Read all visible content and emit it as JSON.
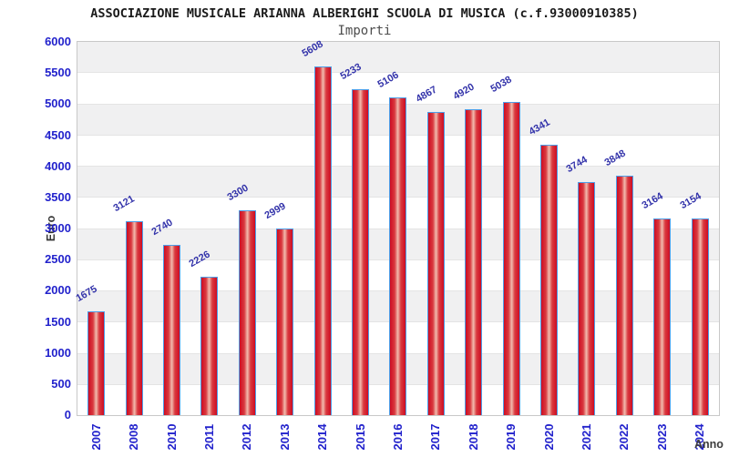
{
  "header": {
    "title": "ASSOCIAZIONE MUSICALE ARIANNA ALBERIGHI SCUOLA DI MUSICA (c.f.93000910385)",
    "subtitle": "Importi"
  },
  "chart_data": {
    "type": "bar",
    "title": "ASSOCIAZIONE MUSICALE ARIANNA ALBERIGHI SCUOLA DI MUSICA (c.f.93000910385)",
    "subtitle": "Importi",
    "xlabel": "Anno",
    "ylabel": "Euro",
    "categories": [
      "2007",
      "2008",
      "2010",
      "2011",
      "2012",
      "2013",
      "2014",
      "2015",
      "2016",
      "2017",
      "2018",
      "2019",
      "2020",
      "2021",
      "2022",
      "2023",
      "2024"
    ],
    "values": [
      1675,
      3121,
      2740,
      2226,
      3300,
      2999,
      5608,
      5233,
      5106,
      4867,
      4920,
      5038,
      4341,
      3744,
      3848,
      3164,
      3154
    ],
    "yticks": [
      0,
      500,
      1000,
      1500,
      2000,
      2500,
      3000,
      3500,
      4000,
      4500,
      5000,
      5500,
      6000
    ],
    "ylim": [
      0,
      6000
    ],
    "grid": "horizontal-bands-alternating",
    "legend": "none",
    "bar_labels_rotation_deg": -30,
    "x_tick_rotation_deg": -90
  },
  "colors": {
    "bar_fill_edge": "#ce0c22",
    "bar_fill_center": "#f2bcae",
    "bar_border": "#4d9ee8",
    "tick_label": "#2222cc",
    "value_label": "#3333aa",
    "band_gray": "#f0f0f1",
    "band_white": "#ffffff",
    "grid_line": "#e4e4e4",
    "plot_border": "#c8c8c8",
    "title_text": "#1a1a1a",
    "subtitle_text": "#4d4d4d",
    "axis_title_text": "#333333"
  }
}
